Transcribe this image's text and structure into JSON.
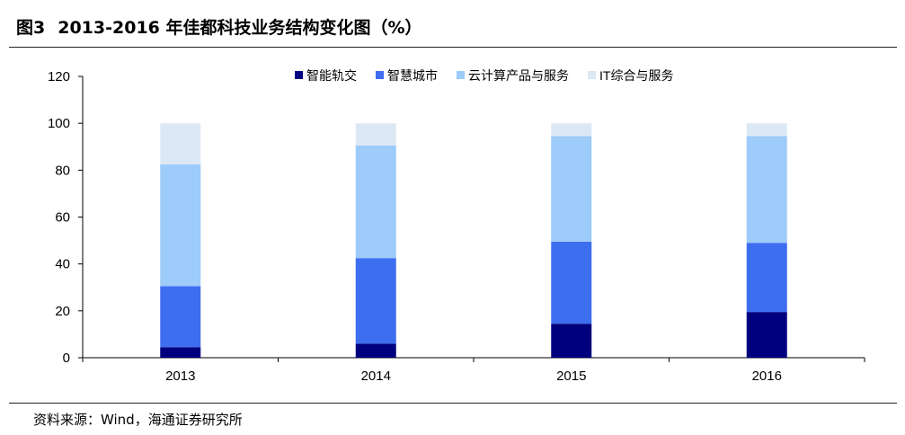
{
  "figure": {
    "label": "图3",
    "title": "2013-2016 年佳都科技业务结构变化图（%）"
  },
  "source": "资料来源：Wind，海通证券研究所",
  "colors": {
    "智能轨交": "#00007f",
    "智慧城市": "#3e6ef0",
    "云计算产品与服务": "#9dcbfa",
    "IT综合与服务": "#dde8f5"
  },
  "chart_data": {
    "type": "bar",
    "stacked": true,
    "categories": [
      "2013",
      "2014",
      "2015",
      "2016"
    ],
    "series": [
      {
        "name": "智能轨交",
        "values": [
          4.5,
          6,
          14.5,
          19.5
        ]
      },
      {
        "name": "智慧城市",
        "values": [
          26,
          36.5,
          35,
          29.5
        ]
      },
      {
        "name": "云计算产品与服务",
        "values": [
          52,
          48,
          45,
          45.5
        ]
      },
      {
        "name": "IT综合与服务",
        "values": [
          17.5,
          9.5,
          5.5,
          5.5
        ]
      }
    ],
    "yticks": [
      "0",
      "20",
      "40",
      "60",
      "80",
      "100",
      "120"
    ],
    "ylim": [
      0,
      120
    ],
    "xlabel": "",
    "ylabel": "",
    "grid": false,
    "legend": "top"
  }
}
